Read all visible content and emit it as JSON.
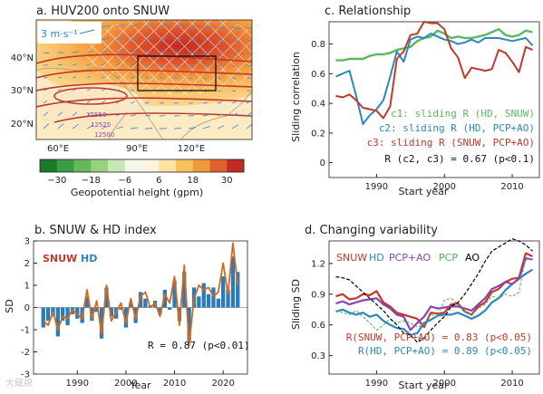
{
  "colors": {
    "snuw": "#c0392b",
    "hd": "#2e86c1",
    "c1": "#5cb85c",
    "pcpao": "#8e44ad",
    "pcp": "#4caf50",
    "ao": "#000000",
    "snuw_idx_line": "#d2691e",
    "hd_bars": "#2b7bba"
  },
  "watermark": "大蔵説",
  "chart_data": [
    {
      "id": "a",
      "type": "heatmap",
      "title": "a. HUV200 onto SNUW",
      "vector_scale_label": "3 m·s⁻¹",
      "contour_labels": [
        "12550",
        "12525",
        "12500"
      ],
      "x_ticks": [
        "60°E",
        "90°E",
        "120°E"
      ],
      "y_ticks": [
        "40°N",
        "30°N",
        "20°N"
      ],
      "colorbar": {
        "label": "Geopotential height (gpm)",
        "ticks": [
          "−30",
          "−18",
          "−6",
          "6",
          "18",
          "30"
        ],
        "colors": [
          "#1a7a2c",
          "#3d9b46",
          "#66b85c",
          "#97d17f",
          "#c7e7b4",
          "#f2f8ec",
          "#fdf4dd",
          "#fde2a0",
          "#f9c15c",
          "#f19a3a",
          "#e0612c",
          "#c02b22"
        ]
      }
    },
    {
      "id": "b",
      "type": "bar",
      "title": "b. SNUW & HD index",
      "xlabel": "Year",
      "ylabel": "SD",
      "ylim": [
        -3,
        3
      ],
      "yticks": [
        -3,
        -2,
        -1,
        0,
        1,
        2,
        3
      ],
      "xticks": [
        1990,
        2000,
        2010,
        2020
      ],
      "legend": [
        "SNUW",
        "HD"
      ],
      "annotation": "R = 0.87 (p<0.01)",
      "x": [
        1983,
        1984,
        1985,
        1986,
        1987,
        1988,
        1989,
        1990,
        1991,
        1992,
        1993,
        1994,
        1995,
        1996,
        1997,
        1998,
        1999,
        2000,
        2001,
        2002,
        2003,
        2004,
        2005,
        2006,
        2007,
        2008,
        2009,
        2010,
        2011,
        2012,
        2013,
        2014,
        2015,
        2016,
        2017,
        2018,
        2019,
        2020,
        2021,
        2022,
        2023
      ],
      "series": [
        {
          "name": "HD",
          "kind": "bar",
          "values": [
            -0.9,
            -0.6,
            -0.4,
            -1.3,
            -0.6,
            -0.8,
            -0.3,
            -0.5,
            -0.7,
            0.5,
            -0.6,
            -0.2,
            -1.4,
            0.9,
            -0.4,
            -0.5,
            -0.1,
            -0.9,
            0.2,
            -0.7,
            0.7,
            0.4,
            0.1,
            0.3,
            -0.3,
            0.8,
            -0.1,
            1.2,
            -0.6,
            1.6,
            -1.5,
            0.9,
            0.5,
            1.1,
            0.6,
            0.9,
            0.4,
            1.4,
            0.8,
            2.3,
            1.6
          ]
        },
        {
          "name": "SNUW",
          "kind": "line",
          "values": [
            -0.6,
            -0.8,
            -0.2,
            -1.0,
            -0.4,
            -0.5,
            -0.1,
            -0.3,
            -0.5,
            0.8,
            -0.5,
            0.3,
            -1.2,
            1.0,
            -0.6,
            -0.2,
            0.2,
            -0.7,
            0.4,
            -0.5,
            0.5,
            0.7,
            0.0,
            0.2,
            -0.4,
            0.6,
            0.2,
            1.4,
            -0.8,
            1.9,
            -1.7,
            0.4,
            1.0,
            0.8,
            0.9,
            0.5,
            0.7,
            2.0,
            0.6,
            2.9,
            1.0
          ]
        }
      ]
    },
    {
      "id": "c",
      "type": "line",
      "title": "c. Relationship",
      "xlabel": "Start year",
      "ylabel": "Sliding correlation",
      "ylim": [
        -0.1,
        0.95
      ],
      "yticks": [
        0,
        0.2,
        0.4,
        0.6,
        0.8
      ],
      "xticks": [
        1990,
        2000,
        2010
      ],
      "annotation": "R (c2, c3) = 0.67 (p<0.1)",
      "x": [
        1984,
        1985,
        1986,
        1987,
        1988,
        1989,
        1990,
        1991,
        1992,
        1993,
        1994,
        1995,
        1996,
        1997,
        1998,
        1999,
        2000,
        2001,
        2002,
        2003,
        2004,
        2005,
        2006,
        2007,
        2008,
        2009,
        2010,
        2011,
        2012,
        2013
      ],
      "series": [
        {
          "name": "c1: sliding R (HD, SNUW)",
          "values": [
            0.69,
            0.69,
            0.7,
            0.7,
            0.7,
            0.72,
            0.73,
            0.73,
            0.74,
            0.76,
            0.77,
            0.78,
            0.82,
            0.84,
            0.85,
            0.89,
            0.87,
            0.84,
            0.85,
            0.84,
            0.84,
            0.85,
            0.86,
            0.88,
            0.9,
            0.86,
            0.85,
            0.86,
            0.89,
            0.88
          ]
        },
        {
          "name": "c2: sliding R (HD, PCP+AO)",
          "values": [
            0.58,
            0.6,
            0.62,
            0.45,
            0.26,
            0.32,
            0.36,
            0.42,
            0.58,
            0.75,
            0.68,
            0.83,
            0.85,
            0.84,
            0.87,
            0.85,
            0.83,
            0.82,
            0.8,
            0.81,
            0.83,
            0.81,
            0.84,
            0.84,
            0.84,
            0.83,
            0.82,
            0.83,
            0.84,
            0.79
          ]
        },
        {
          "name": "c3: sliding R (SNUW, PCP+AO)",
          "values": [
            0.45,
            0.44,
            0.46,
            0.42,
            0.37,
            0.36,
            0.35,
            0.3,
            0.38,
            0.7,
            0.75,
            0.86,
            0.87,
            0.95,
            0.94,
            0.94,
            0.9,
            0.77,
            0.71,
            0.57,
            0.64,
            0.63,
            0.62,
            0.63,
            0.76,
            0.74,
            0.68,
            0.61,
            0.78,
            0.76
          ]
        }
      ]
    },
    {
      "id": "d",
      "type": "line",
      "title": "d. Changing variability",
      "xlabel": "Start year",
      "ylabel": "Sliding SD",
      "ylim": [
        0.12,
        1.42
      ],
      "yticks": [
        0.3,
        0.6,
        0.9,
        1.2
      ],
      "xticks": [
        1990,
        2000,
        2010
      ],
      "legend": [
        "SNUW",
        "HD",
        "PCP+AO",
        "PCP",
        "AO"
      ],
      "annotations": [
        "R(SNUW, PCP+AO) = 0.83 (p<0.05)",
        "R(HD, PCP+AO) = 0.89 (p<0.05)"
      ],
      "x": [
        1984,
        1985,
        1986,
        1987,
        1988,
        1989,
        1990,
        1991,
        1992,
        1993,
        1994,
        1995,
        1996,
        1997,
        1998,
        1999,
        2000,
        2001,
        2002,
        2003,
        2004,
        2005,
        2006,
        2007,
        2008,
        2009,
        2010,
        2011,
        2012,
        2013
      ],
      "series": [
        {
          "name": "SNUW",
          "values": [
            0.88,
            0.9,
            0.85,
            0.86,
            0.9,
            0.89,
            0.93,
            0.82,
            0.78,
            0.72,
            0.7,
            0.68,
            0.66,
            0.58,
            0.72,
            0.71,
            0.72,
            0.8,
            0.81,
            0.73,
            0.7,
            0.78,
            0.82,
            0.92,
            0.95,
            1.02,
            1.05,
            1.06,
            1.3,
            1.27
          ]
        },
        {
          "name": "HD",
          "values": [
            0.73,
            0.75,
            0.72,
            0.7,
            0.72,
            0.68,
            0.7,
            0.64,
            0.6,
            0.57,
            0.56,
            0.5,
            0.52,
            0.62,
            0.65,
            0.69,
            0.7,
            0.7,
            0.72,
            0.69,
            0.66,
            0.69,
            0.74,
            0.82,
            0.86,
            0.94,
            1.0,
            1.05,
            1.1,
            1.14
          ]
        },
        {
          "name": "PCP+AO",
          "values": [
            0.81,
            0.83,
            0.8,
            0.82,
            0.84,
            0.85,
            0.86,
            0.8,
            0.76,
            0.7,
            0.68,
            0.55,
            0.62,
            0.68,
            0.78,
            0.76,
            0.77,
            0.78,
            0.78,
            0.76,
            0.74,
            0.8,
            0.86,
            0.95,
            0.98,
            1.02,
            1.0,
            1.05,
            1.25,
            1.24
          ]
        },
        {
          "name": "PCP",
          "values": [
            0.74,
            0.72,
            0.7,
            0.74,
            0.68,
            0.62,
            0.55,
            0.6,
            0.66,
            0.62,
            0.64,
            0.62,
            0.58,
            0.6,
            0.7,
            0.68,
            0.84,
            0.86,
            0.8,
            0.73,
            0.7,
            0.76,
            0.8,
            0.88,
            0.86,
            0.9,
            0.88,
            0.92,
            1.26,
            1.24
          ]
        },
        {
          "name": "AO",
          "values": [
            1.07,
            1.06,
            1.04,
            0.98,
            0.92,
            0.86,
            0.8,
            0.74,
            0.66,
            0.6,
            0.52,
            0.5,
            0.43,
            0.47,
            0.55,
            0.62,
            0.68,
            0.78,
            0.82,
            0.9,
            1.0,
            1.1,
            1.22,
            1.32,
            1.36,
            1.4,
            1.44,
            1.42,
            1.38,
            1.32
          ]
        }
      ]
    }
  ]
}
